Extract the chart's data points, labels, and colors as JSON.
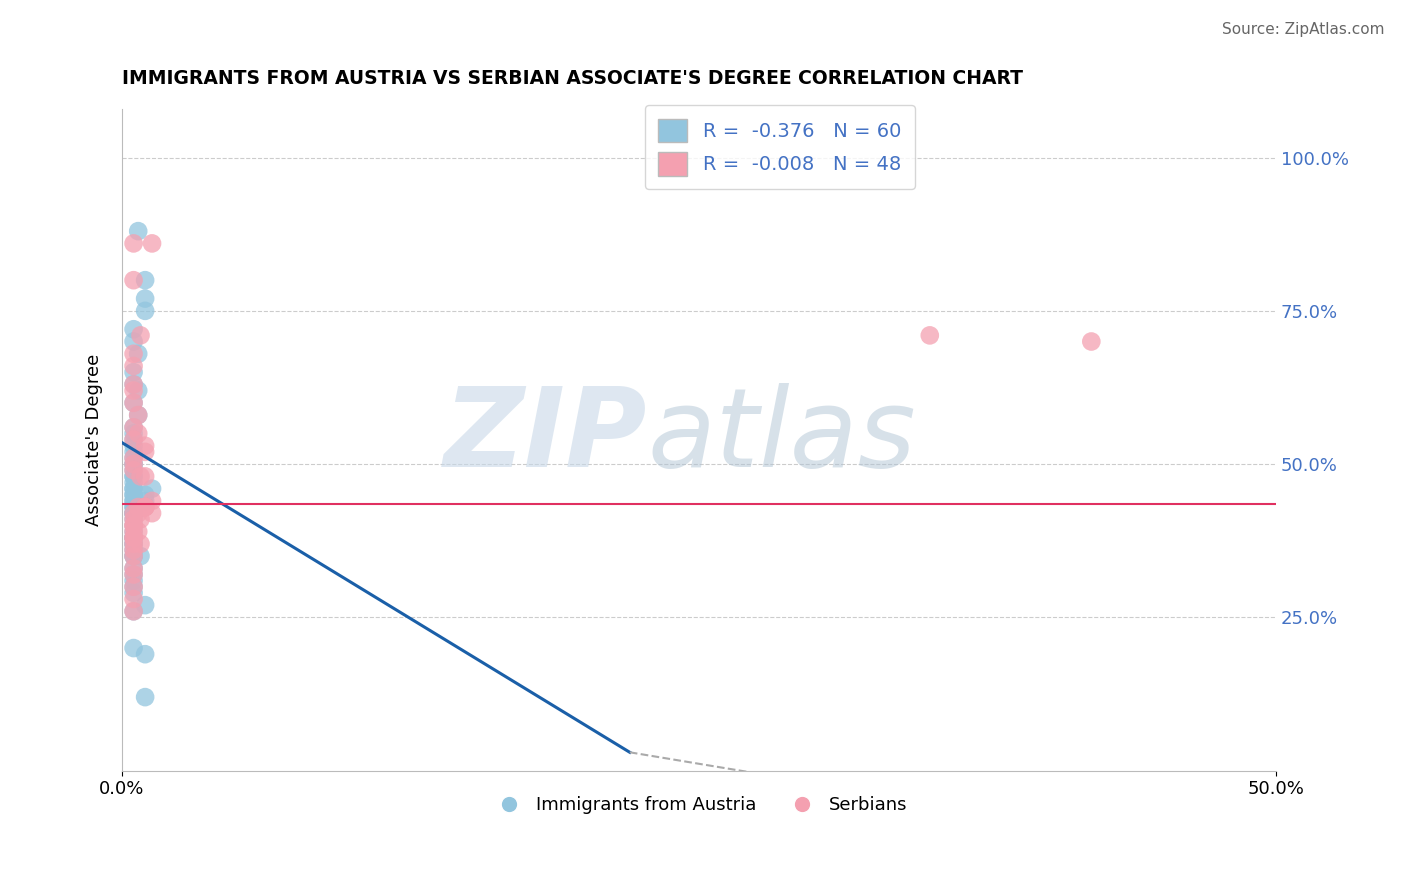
{
  "title": "IMMIGRANTS FROM AUSTRIA VS SERBIAN ASSOCIATE'S DEGREE CORRELATION CHART",
  "source": "Source: ZipAtlas.com",
  "ylabel": "Associate's Degree",
  "ytick_labels": [
    "100.0%",
    "75.0%",
    "50.0%",
    "25.0%"
  ],
  "ytick_positions": [
    1.0,
    0.75,
    0.5,
    0.25
  ],
  "xlim": [
    0.0,
    0.5
  ],
  "ylim": [
    0.0,
    1.08
  ],
  "legend_label1": "Immigrants from Austria",
  "legend_label2": "Serbians",
  "blue_color": "#92C5DE",
  "pink_color": "#F4A0B0",
  "line_blue": "#1A5FA8",
  "line_pink": "#E03060",
  "austria_x": [
    0.007,
    0.01,
    0.01,
    0.01,
    0.005,
    0.005,
    0.007,
    0.005,
    0.005,
    0.007,
    0.005,
    0.007,
    0.005,
    0.005,
    0.005,
    0.005,
    0.005,
    0.005,
    0.005,
    0.005,
    0.005,
    0.005,
    0.005,
    0.005,
    0.005,
    0.005,
    0.005,
    0.005,
    0.005,
    0.005,
    0.005,
    0.005,
    0.005,
    0.005,
    0.005,
    0.01,
    0.01,
    0.013,
    0.005,
    0.005,
    0.005,
    0.005,
    0.005,
    0.005,
    0.005,
    0.005,
    0.008,
    0.005,
    0.005,
    0.005,
    0.005,
    0.005,
    0.01,
    0.005,
    0.005,
    0.01,
    0.01,
    0.005,
    0.005,
    0.005
  ],
  "austria_y": [
    0.88,
    0.8,
    0.77,
    0.75,
    0.72,
    0.7,
    0.68,
    0.65,
    0.63,
    0.62,
    0.6,
    0.58,
    0.56,
    0.55,
    0.54,
    0.53,
    0.52,
    0.51,
    0.5,
    0.5,
    0.49,
    0.48,
    0.48,
    0.47,
    0.46,
    0.46,
    0.45,
    0.45,
    0.44,
    0.44,
    0.43,
    0.43,
    0.42,
    0.42,
    0.41,
    0.45,
    0.44,
    0.46,
    0.4,
    0.39,
    0.38,
    0.38,
    0.37,
    0.37,
    0.36,
    0.35,
    0.35,
    0.33,
    0.32,
    0.31,
    0.3,
    0.29,
    0.27,
    0.26,
    0.2,
    0.19,
    0.12,
    0.42,
    0.38,
    0.35
  ],
  "serbian_x": [
    0.005,
    0.005,
    0.013,
    0.008,
    0.005,
    0.005,
    0.005,
    0.005,
    0.005,
    0.007,
    0.005,
    0.007,
    0.005,
    0.01,
    0.01,
    0.005,
    0.005,
    0.005,
    0.008,
    0.01,
    0.013,
    0.01,
    0.007,
    0.01,
    0.005,
    0.007,
    0.008,
    0.005,
    0.005,
    0.005,
    0.005,
    0.007,
    0.005,
    0.005,
    0.01,
    0.01,
    0.013,
    0.005,
    0.008,
    0.005,
    0.005,
    0.005,
    0.35,
    0.005,
    0.005,
    0.005,
    0.42,
    0.005
  ],
  "serbian_y": [
    0.86,
    0.8,
    0.86,
    0.71,
    0.68,
    0.66,
    0.63,
    0.62,
    0.6,
    0.58,
    0.56,
    0.55,
    0.54,
    0.53,
    0.52,
    0.51,
    0.5,
    0.49,
    0.48,
    0.48,
    0.44,
    0.43,
    0.43,
    0.43,
    0.42,
    0.42,
    0.41,
    0.41,
    0.4,
    0.4,
    0.39,
    0.39,
    0.38,
    0.38,
    0.43,
    0.43,
    0.42,
    0.37,
    0.37,
    0.36,
    0.35,
    0.33,
    0.71,
    0.32,
    0.3,
    0.28,
    0.7,
    0.26
  ],
  "austria_trend_x0": 0.0,
  "austria_trend_y0": 0.535,
  "austria_trend_x1": 0.22,
  "austria_trend_y1": 0.03,
  "serbian_trend_y": 0.435,
  "dashed_line_x0": 0.22,
  "dashed_line_y0": 0.03,
  "dashed_line_x1": 0.3,
  "dashed_line_y1": -0.02
}
